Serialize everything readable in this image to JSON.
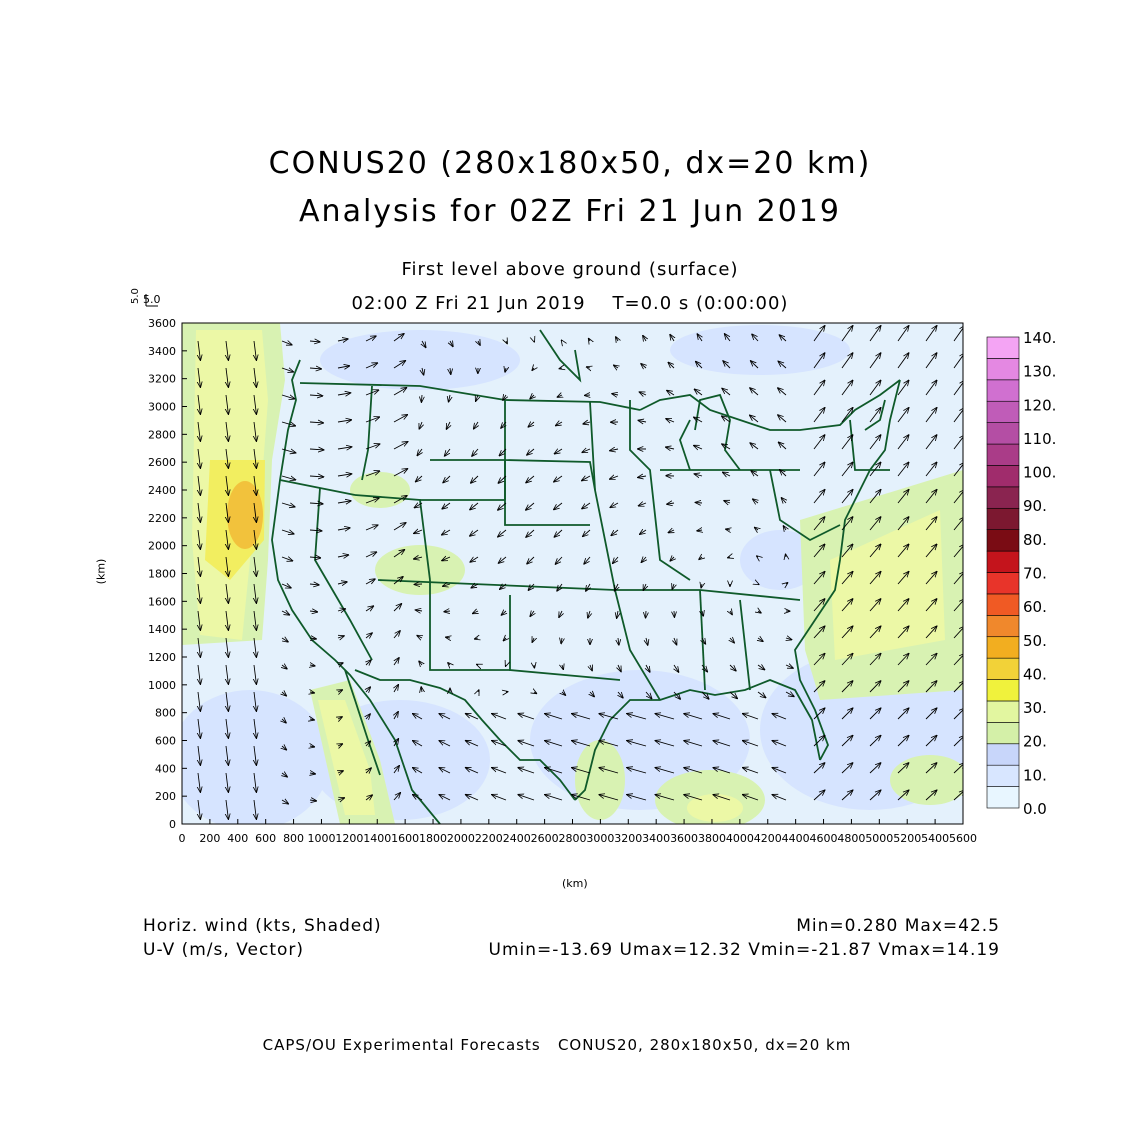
{
  "title_line1": "CONUS20 (280x180x50, dx=20 km)",
  "title_line2": "Analysis for 02Z Fri 21 Jun 2019",
  "subtitle": "First level above ground (surface)",
  "time_line": "02:00 Z Fri 21 Jun 2019    T=0.0 s (0:00:00)",
  "reference_vector": {
    "label": "5.0",
    "vertical_label": "5.0"
  },
  "axes": {
    "x_label": "(km)",
    "y_label": "(km)",
    "x_ticks": [
      "0",
      "200",
      "400",
      "600",
      "800",
      "1000",
      "1200",
      "1400",
      "1600",
      "1800",
      "2000",
      "2200",
      "2400",
      "2600",
      "2800",
      "3000",
      "3200",
      "3400",
      "3600",
      "3800",
      "4000",
      "4200",
      "4400",
      "4600",
      "4800",
      "5000",
      "5200",
      "5400",
      "5600"
    ],
    "y_ticks": [
      "0",
      "200",
      "400",
      "600",
      "800",
      "1000",
      "1200",
      "1400",
      "1600",
      "1800",
      "2000",
      "2200",
      "2400",
      "2600",
      "2800",
      "3000",
      "3200",
      "3400",
      "3600"
    ],
    "x_range": [
      0,
      5600
    ],
    "y_range": [
      0,
      3600
    ]
  },
  "colorbar": {
    "labels": [
      "0.0",
      "10.",
      "20.",
      "30.",
      "40.",
      "50.",
      "60.",
      "70.",
      "80.",
      "90.",
      "100.",
      "110.",
      "120.",
      "130.",
      "140."
    ],
    "colors": [
      "#e8f6ff",
      "#d8e6ff",
      "#c8d6fa",
      "#d4f0a8",
      "#e2f6a0",
      "#f0f23c",
      "#f2d238",
      "#f2ae20",
      "#f0882c",
      "#f05a24",
      "#e8342a",
      "#c4141c",
      "#7a0c14",
      "#7c1830",
      "#8a2450",
      "#a02c6c",
      "#aa3c88",
      "#b44ea4",
      "#c05cb8",
      "#d070d0",
      "#e488e2",
      "#f4a4f4"
    ]
  },
  "stats": {
    "field_desc": "Horiz. wind (kts, Shaded)",
    "vector_desc": "U-V (m/s, Vector)",
    "minmax": "Min=0.280 Max=42.5",
    "uv_range": "Umin=-13.69 Umax=12.32 Vmin=-21.87 Vmax=14.19"
  },
  "footer": "CAPS/OU Experimental Forecasts   CONUS20, 280x180x50, dx=20 km",
  "map_colors": {
    "coastline": "#0f5a2a",
    "background": "#e4f1fc"
  }
}
